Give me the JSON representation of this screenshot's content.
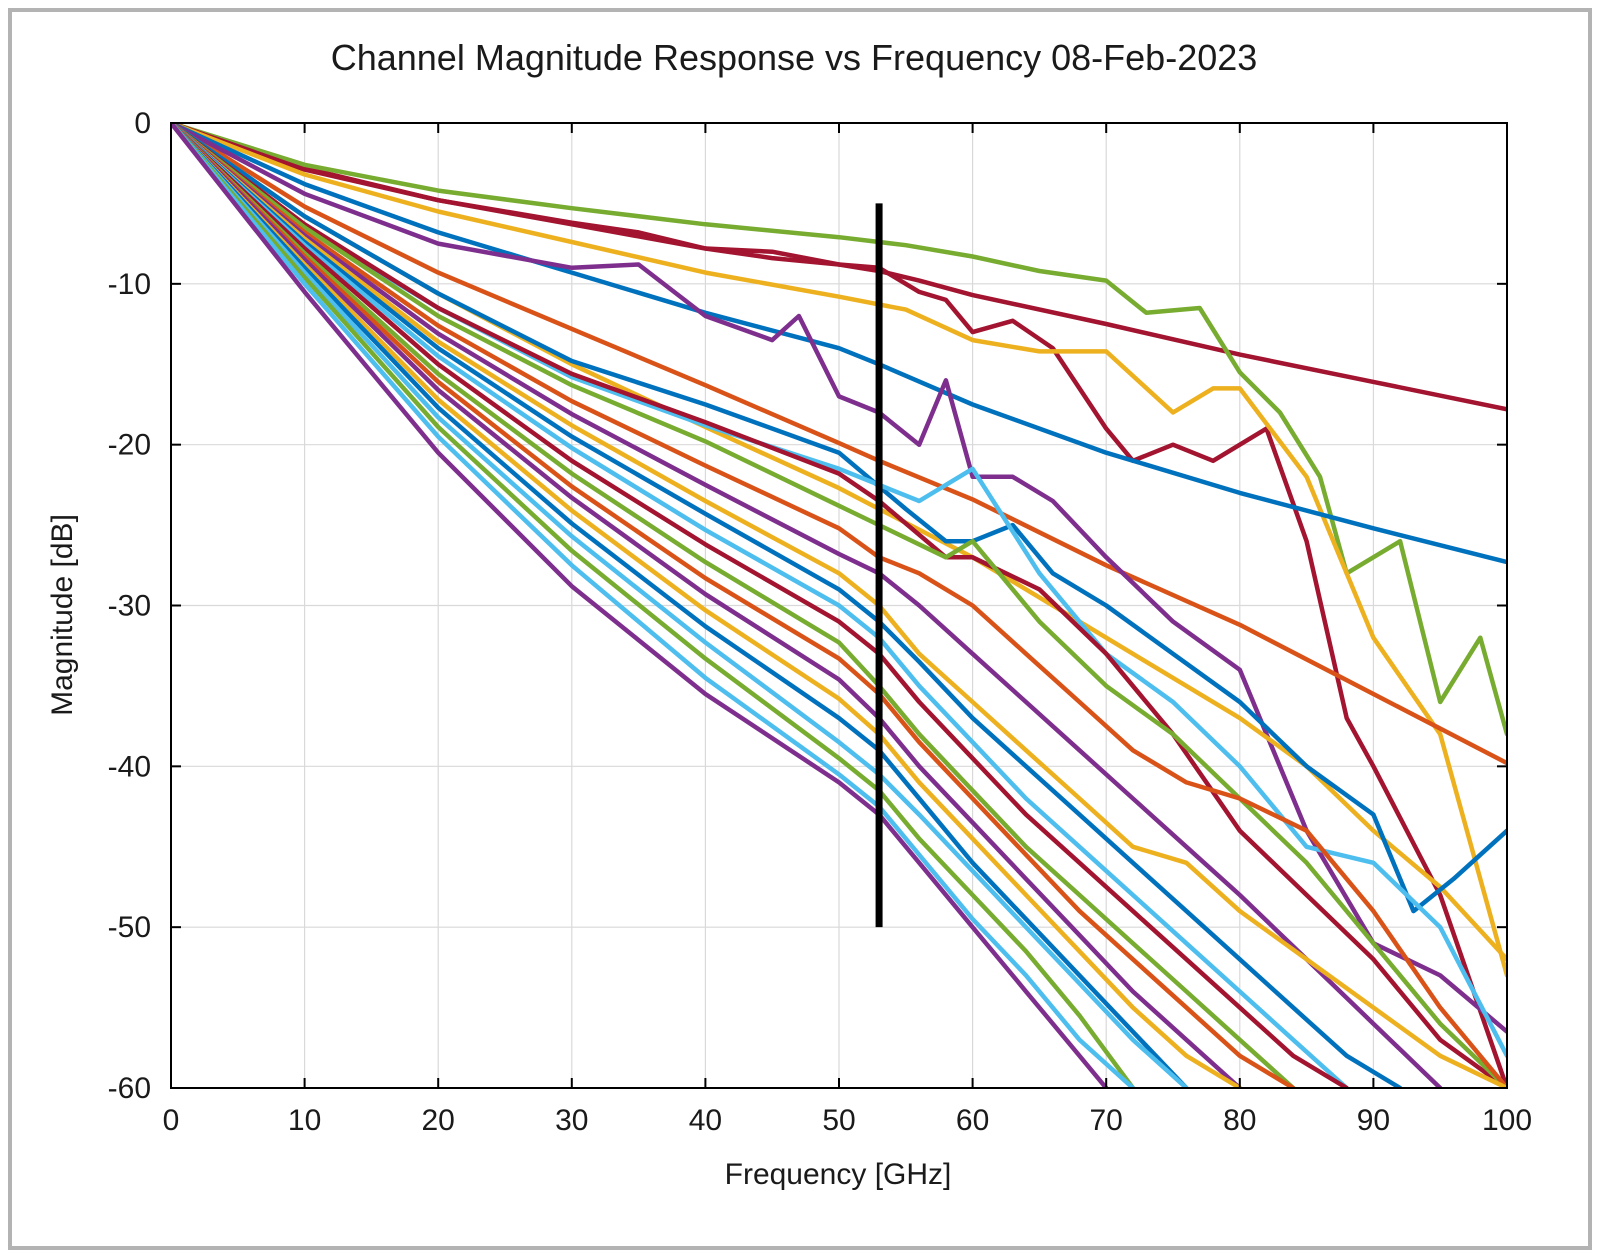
{
  "chart_data": {
    "type": "line",
    "title": "Channel Magnitude Response vs Frequency 08-Feb-2023",
    "xlabel": "Frequency [GHz]",
    "ylabel": "Magnitude [dB]",
    "xlim": [
      0,
      100
    ],
    "ylim": [
      -60,
      0
    ],
    "xticks": [
      0,
      10,
      20,
      30,
      40,
      50,
      60,
      70,
      80,
      90,
      100
    ],
    "yticks": [
      0,
      -10,
      -20,
      -30,
      -40,
      -50,
      -60
    ],
    "xtick_labels": [
      "0",
      "10",
      "20",
      "30",
      "40",
      "50",
      "60",
      "70",
      "80",
      "90",
      "100"
    ],
    "ytick_labels": [
      "0",
      "-10",
      "-20",
      "-30",
      "-40",
      "-50",
      "-60"
    ],
    "grid": true,
    "legend": "none",
    "marker_line": {
      "x": 53,
      "y_range": [
        -5,
        -50
      ],
      "color": "#000000"
    },
    "series": [
      {
        "color": "#a2142f",
        "x": [
          0,
          10,
          20,
          30,
          40,
          45,
          50,
          53,
          56,
          60,
          70,
          80,
          90,
          100
        ],
        "y": [
          0,
          -2.8,
          -4.8,
          -6.3,
          -7.8,
          -8.4,
          -8.8,
          -9.2,
          -9.8,
          -10.7,
          -12.5,
          -14.4,
          -16.1,
          -17.8
        ]
      },
      {
        "color": "#77ac30",
        "x": [
          0,
          10,
          20,
          30,
          40,
          50,
          55,
          60,
          65,
          70,
          73,
          77,
          80,
          83,
          86,
          88,
          92,
          95,
          98,
          100
        ],
        "y": [
          0,
          -2.6,
          -4.2,
          -5.3,
          -6.3,
          -7.1,
          -7.6,
          -8.3,
          -9.2,
          -9.8,
          -11.8,
          -11.5,
          -15.5,
          -18,
          -22,
          -28,
          -26,
          -36,
          -32,
          -38
        ]
      },
      {
        "color": "#a2142f",
        "x": [
          0,
          10,
          20,
          30,
          35,
          40,
          45,
          50,
          53,
          56,
          58,
          60,
          63,
          66,
          70,
          72,
          75,
          78,
          82,
          85,
          88,
          90,
          95,
          100
        ],
        "y": [
          0,
          -2.9,
          -4.8,
          -6.2,
          -6.8,
          -7.8,
          -8,
          -8.8,
          -9,
          -10.5,
          -11,
          -13,
          -12.3,
          -14,
          -19,
          -21,
          -20,
          -21,
          -19,
          -26,
          -37,
          -40,
          -48,
          -60
        ]
      },
      {
        "color": "#edb120",
        "x": [
          0,
          10,
          20,
          30,
          40,
          50,
          55,
          60,
          65,
          70,
          75,
          78,
          80,
          85,
          90,
          95,
          100
        ],
        "y": [
          0,
          -3.2,
          -5.5,
          -7.4,
          -9.3,
          -10.8,
          -11.6,
          -13.5,
          -14.2,
          -14.2,
          -18,
          -16.5,
          -16.5,
          -22,
          -32,
          -38,
          -53
        ]
      },
      {
        "color": "#0072bd",
        "x": [
          0,
          10,
          20,
          30,
          40,
          50,
          53,
          60,
          70,
          80,
          90,
          100
        ],
        "y": [
          0,
          -3.8,
          -6.8,
          -9.3,
          -11.8,
          -14,
          -15,
          -17.5,
          -20.5,
          -23,
          -25.2,
          -27.3
        ]
      },
      {
        "color": "#d95319",
        "x": [
          0,
          10,
          20,
          30,
          40,
          50,
          53,
          60,
          70,
          80,
          90,
          100
        ],
        "y": [
          0,
          -5.2,
          -9.3,
          -12.8,
          -16.3,
          -19.9,
          -21,
          -23.4,
          -27.5,
          -31.2,
          -35.5,
          -39.8
        ]
      },
      {
        "color": "#7e2f8e",
        "x": [
          0,
          10,
          20,
          30,
          35,
          40,
          45,
          47,
          50,
          53,
          56,
          58,
          60,
          63,
          66,
          70,
          75,
          80,
          85,
          90,
          95,
          100
        ],
        "y": [
          0,
          -4.4,
          -7.5,
          -9,
          -8.8,
          -12,
          -13.5,
          -12,
          -17,
          -18,
          -20,
          -16,
          -22,
          -22,
          -23.5,
          -27,
          -31,
          -34,
          -44,
          -51,
          -53,
          -56.5
        ]
      },
      {
        "color": "#edb120",
        "x": [
          0,
          10,
          20,
          30,
          40,
          50,
          53,
          60,
          70,
          80,
          85,
          90,
          95,
          100
        ],
        "y": [
          0,
          -5.8,
          -10.6,
          -15,
          -18.9,
          -22.7,
          -24,
          -27,
          -32,
          -37,
          -40,
          -44,
          -47.5,
          -52
        ]
      },
      {
        "color": "#0072bd",
        "x": [
          0,
          10,
          20,
          30,
          40,
          50,
          55,
          58,
          60,
          63,
          66,
          70,
          75,
          80,
          85,
          90,
          93,
          96,
          100
        ],
        "y": [
          0,
          -5.8,
          -10.6,
          -14.8,
          -17.5,
          -20.5,
          -24,
          -26,
          -26,
          -25,
          -28,
          -30,
          -33,
          -36,
          -40,
          -43,
          -49,
          -47,
          -44
        ]
      },
      {
        "color": "#4dbeee",
        "x": [
          0,
          10,
          20,
          30,
          40,
          50,
          53,
          56,
          60,
          65,
          70,
          75,
          80,
          85,
          90,
          95,
          100
        ],
        "y": [
          0,
          -6.5,
          -11.5,
          -15.8,
          -18.8,
          -21.5,
          -22.5,
          -23.5,
          -21.5,
          -28,
          -33,
          -36,
          -40,
          -45,
          -46,
          -50,
          -58
        ]
      },
      {
        "color": "#a2142f",
        "x": [
          0,
          10,
          20,
          30,
          40,
          50,
          53,
          58,
          60,
          65,
          70,
          75,
          80,
          85,
          90,
          95,
          100
        ],
        "y": [
          0,
          -6.3,
          -11.5,
          -15.6,
          -18.6,
          -21.8,
          -23.5,
          -27,
          -27,
          -29,
          -33,
          -38,
          -44,
          -48,
          -52,
          -57,
          -60
        ]
      },
      {
        "color": "#77ac30",
        "x": [
          0,
          10,
          20,
          30,
          40,
          50,
          53,
          58,
          60,
          65,
          70,
          75,
          80,
          85,
          90,
          95,
          100
        ],
        "y": [
          0,
          -6.5,
          -12,
          -16.3,
          -19.8,
          -23.8,
          -25,
          -27,
          -26,
          -31,
          -35,
          -38,
          -42,
          -46,
          -51,
          -56,
          -60
        ]
      },
      {
        "color": "#d95319",
        "x": [
          0,
          10,
          20,
          30,
          40,
          50,
          53,
          56,
          60,
          64,
          68,
          72,
          76,
          80,
          85,
          90,
          95,
          100
        ],
        "y": [
          0,
          -6.8,
          -12.6,
          -17.3,
          -21.3,
          -25.2,
          -27,
          -28,
          -30,
          -33,
          -36,
          -39,
          -41,
          -42,
          -44,
          -49,
          -55,
          -60
        ]
      },
      {
        "color": "#7e2f8e",
        "x": [
          0,
          10,
          20,
          30,
          40,
          50,
          53,
          56,
          60,
          64,
          68,
          72,
          76,
          80,
          85,
          90,
          95
        ],
        "y": [
          0,
          -7,
          -13.1,
          -18.1,
          -22.5,
          -26.8,
          -28,
          -30,
          -33,
          -36,
          -39,
          -42,
          -45,
          -48,
          -52,
          -56,
          -60
        ]
      },
      {
        "color": "#edb120",
        "x": [
          0,
          10,
          20,
          30,
          40,
          50,
          53,
          56,
          60,
          64,
          68,
          72,
          76,
          80,
          85,
          90,
          95,
          100
        ],
        "y": [
          0,
          -7.2,
          -13.6,
          -18.8,
          -23.5,
          -28,
          -30,
          -33,
          -36,
          -39,
          -42,
          -45,
          -46,
          -49,
          -52,
          -55,
          -58,
          -60
        ]
      },
      {
        "color": "#0072bd",
        "x": [
          0,
          10,
          20,
          30,
          40,
          50,
          53,
          56,
          60,
          64,
          68,
          72,
          76,
          80,
          84,
          88,
          92
        ],
        "y": [
          0,
          -7.4,
          -14,
          -19.5,
          -24.3,
          -29,
          -31,
          -33.5,
          -37,
          -40,
          -43,
          -46,
          -49,
          -52,
          -55,
          -58,
          -60
        ]
      },
      {
        "color": "#4dbeee",
        "x": [
          0,
          10,
          20,
          30,
          40,
          50,
          53,
          56,
          60,
          64,
          68,
          72,
          76,
          80,
          84,
          88
        ],
        "y": [
          0,
          -7.6,
          -14.5,
          -20.2,
          -25.3,
          -30,
          -32,
          -35,
          -38.5,
          -42,
          -45,
          -48,
          -51,
          -54,
          -57,
          -60
        ]
      },
      {
        "color": "#a2142f",
        "x": [
          0,
          10,
          20,
          30,
          40,
          50,
          53,
          56,
          60,
          64,
          68,
          72,
          76,
          80,
          84,
          88
        ],
        "y": [
          0,
          -7.8,
          -15,
          -21,
          -26.2,
          -31,
          -33,
          -36,
          -39.5,
          -43,
          -46,
          -49,
          -52,
          -55,
          -58,
          -60
        ]
      },
      {
        "color": "#77ac30",
        "x": [
          0,
          10,
          20,
          30,
          40,
          50,
          53,
          56,
          60,
          64,
          68,
          72,
          76,
          80,
          84
        ],
        "y": [
          0,
          -8.1,
          -15.6,
          -21.8,
          -27.3,
          -32.3,
          -35,
          -38,
          -41.5,
          -45,
          -48,
          -51,
          -54,
          -57,
          -60
        ]
      },
      {
        "color": "#d95319",
        "x": [
          0,
          10,
          20,
          30,
          40,
          50,
          53,
          56,
          60,
          64,
          68,
          72,
          76,
          80,
          84
        ],
        "y": [
          0,
          -8.3,
          -16.1,
          -22.6,
          -28.3,
          -33.3,
          -35.5,
          -38.5,
          -42,
          -45.5,
          -49,
          -52,
          -55,
          -58,
          -60
        ]
      },
      {
        "color": "#7e2f8e",
        "x": [
          0,
          10,
          20,
          30,
          40,
          50,
          53,
          56,
          60,
          64,
          68,
          72,
          76,
          80
        ],
        "y": [
          0,
          -8.5,
          -16.6,
          -23.3,
          -29.3,
          -34.6,
          -37,
          -40,
          -43.5,
          -47,
          -50.5,
          -54,
          -57,
          -60
        ]
      },
      {
        "color": "#edb120",
        "x": [
          0,
          10,
          20,
          30,
          40,
          50,
          53,
          56,
          60,
          64,
          68,
          72,
          76,
          80
        ],
        "y": [
          0,
          -8.8,
          -17.2,
          -24.1,
          -30.3,
          -35.8,
          -38,
          -41,
          -44.5,
          -48,
          -51.5,
          -55,
          -58,
          -60
        ]
      },
      {
        "color": "#0072bd",
        "x": [
          0,
          10,
          20,
          30,
          40,
          50,
          53,
          56,
          60,
          64,
          68,
          72,
          76
        ],
        "y": [
          0,
          -9,
          -17.7,
          -24.9,
          -31.3,
          -37,
          -39,
          -42,
          -46,
          -49.5,
          -53,
          -56.5,
          -60
        ]
      },
      {
        "color": "#4dbeee",
        "x": [
          0,
          10,
          20,
          30,
          40,
          50,
          53,
          56,
          60,
          64,
          68,
          72,
          76
        ],
        "y": [
          0,
          -9.3,
          -18.3,
          -25.7,
          -32.3,
          -38.5,
          -40.5,
          -43,
          -46.5,
          -50,
          -53.5,
          -57,
          -60
        ]
      },
      {
        "color": "#77ac30",
        "x": [
          0,
          10,
          20,
          30,
          40,
          50,
          53,
          56,
          60,
          64,
          68,
          72
        ],
        "y": [
          0,
          -9.6,
          -18.9,
          -26.6,
          -33.3,
          -39.5,
          -41.5,
          -44.5,
          -48,
          -51.5,
          -55.5,
          -60
        ]
      },
      {
        "color": "#4dbeee",
        "x": [
          0,
          10,
          20,
          30,
          40,
          50,
          53,
          56,
          60,
          64,
          68,
          72
        ],
        "y": [
          0,
          -10,
          -19.5,
          -27.5,
          -34.5,
          -40.5,
          -42.5,
          -45.5,
          -49.5,
          -53,
          -57,
          -60
        ]
      },
      {
        "color": "#7e2f8e",
        "x": [
          0,
          10,
          20,
          30,
          40,
          50,
          53,
          56,
          60,
          64,
          68,
          70
        ],
        "y": [
          0,
          -10.5,
          -20.5,
          -28.8,
          -35.5,
          -41,
          -43,
          -46,
          -50,
          -54,
          -58,
          -60
        ]
      }
    ]
  }
}
